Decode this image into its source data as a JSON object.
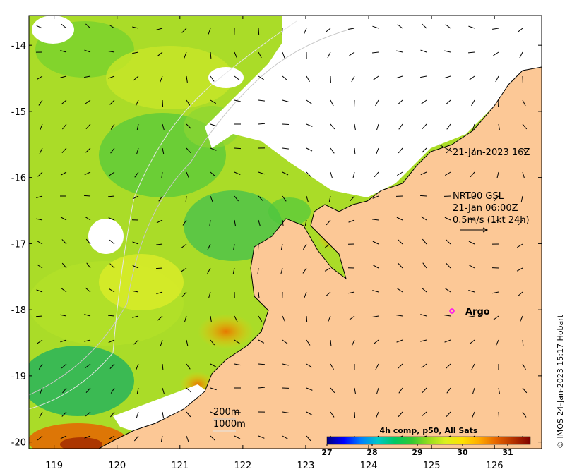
{
  "map": {
    "lon_range": [
      118.6,
      126.75
    ],
    "lat_range": [
      -20.1,
      -13.55
    ],
    "x_ticks": [
      "119",
      "120",
      "121",
      "122",
      "123",
      "124",
      "125",
      "126"
    ],
    "y_ticks": [
      "-14",
      "-15",
      "-16",
      "-17",
      "-18",
      "-19",
      "-20"
    ],
    "grid": false,
    "colors": {
      "land": "#fcc896",
      "no_data": "#ffffff",
      "coast": "#000000",
      "bathy_200m": "#c8c8c8",
      "bathy_1000m": "#dcdcdc",
      "argo_marker": "#ff00ff"
    }
  },
  "annotations": {
    "date_label": "21-Jan-2023 16Z",
    "current_model": "NRT00 GSL",
    "current_time": "21-Jan 06:00Z",
    "current_scale": "0.5m/s (1kt 24h)",
    "argo_label": "Argo",
    "contour_200": "200m",
    "contour_1000": "1000m",
    "credit": "© IMOS 24-Jan-2023 15:17 Hobart"
  },
  "colorbar": {
    "title": "4h comp, p50, All Sats",
    "range": [
      27,
      31.5
    ],
    "ticks": [
      "27",
      "28",
      "29",
      "30",
      "31"
    ],
    "stops": [
      "#00007f",
      "#0000ff",
      "#007fff",
      "#00c8c8",
      "#00c864",
      "#32c832",
      "#96dc1e",
      "#dcf01e",
      "#ffe100",
      "#ffaa00",
      "#e66400",
      "#b43200",
      "#7f0000"
    ]
  }
}
